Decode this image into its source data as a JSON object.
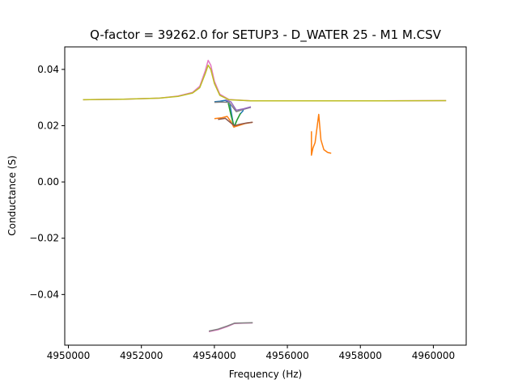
{
  "chart_data": {
    "type": "line",
    "title": "Q-factor = 39262.0 for SETUP3 - D_WATER 25 - M1 M.CSV",
    "xlabel": "Frequency (Hz)",
    "ylabel": "Conductance (S)",
    "xlim": [
      4949900,
      4960900
    ],
    "ylim": [
      -0.058,
      0.048
    ],
    "xticks": [
      4950000,
      4952000,
      4954000,
      4956000,
      4958000,
      4960000
    ],
    "xtick_labels": [
      "4950000",
      "4952000",
      "4954000",
      "4956000",
      "4958000",
      "4960000"
    ],
    "yticks": [
      -0.04,
      -0.02,
      0.0,
      0.02,
      0.04
    ],
    "ytick_labels": [
      "−0.04",
      "−0.02",
      "0.00",
      "0.02",
      "0.04"
    ],
    "grid": false,
    "legend": false,
    "series": [
      {
        "color": "#e377c2",
        "x": [
          4950400,
          4951500,
          4952500,
          4953000,
          4953400,
          4953600,
          4953750,
          4953830,
          4953900,
          4954000,
          4954150,
          4954400,
          4955000,
          4956500,
          4958500,
          4960350
        ],
        "y": [
          0.0292,
          0.0294,
          0.0298,
          0.0305,
          0.0318,
          0.034,
          0.0395,
          0.0432,
          0.0415,
          0.0358,
          0.0312,
          0.0293,
          0.0288,
          0.0288,
          0.0288,
          0.0289
        ]
      },
      {
        "color": "#bcbd22",
        "x": [
          4950400,
          4951500,
          4952500,
          4953000,
          4953400,
          4953600,
          4953750,
          4953830,
          4953900,
          4954000,
          4954150,
          4954400,
          4955000,
          4956500,
          4958500,
          4960350
        ],
        "y": [
          0.0292,
          0.0294,
          0.0298,
          0.0304,
          0.0316,
          0.0335,
          0.0385,
          0.0415,
          0.04,
          0.035,
          0.0308,
          0.0292,
          0.0288,
          0.0288,
          0.0288,
          0.0289
        ]
      },
      {
        "color": "#1f77b4",
        "x": [
          4954000,
          4954150,
          4954300,
          4954420,
          4954500,
          4954540,
          4954600,
          4954700,
          4954800
        ],
        "y": [
          0.0285,
          0.0287,
          0.029,
          0.028,
          0.022,
          0.0195,
          0.0215,
          0.024,
          0.0255
        ]
      },
      {
        "color": "#2ca02c",
        "x": [
          4954380,
          4954460,
          4954520,
          4954560,
          4954620,
          4954720
        ],
        "y": [
          0.028,
          0.0235,
          0.0205,
          0.02,
          0.022,
          0.0245
        ]
      },
      {
        "color": "#7f7f7f",
        "x": [
          4954000,
          4954200,
          4954400,
          4954600,
          4954800,
          4955000
        ],
        "y": [
          0.0283,
          0.0284,
          0.0283,
          0.025,
          0.0258,
          0.0265
        ]
      },
      {
        "color": "#9467bd",
        "x": [
          4954300,
          4954450,
          4954600,
          4954800,
          4955000
        ],
        "y": [
          0.0292,
          0.0285,
          0.0255,
          0.026,
          0.0267
        ]
      },
      {
        "color": "#ff7f0e",
        "x": [
          4954000,
          4954200,
          4954350,
          4954450,
          4954530,
          4954650,
          4954850,
          4955050
        ],
        "y": [
          0.0225,
          0.0228,
          0.0233,
          0.0215,
          0.0195,
          0.02,
          0.0208,
          0.0212
        ]
      },
      {
        "color": "#8c564b",
        "x": [
          4954100,
          4954300,
          4954450,
          4954550,
          4954700,
          4954900,
          4955050
        ],
        "y": [
          0.0222,
          0.0226,
          0.021,
          0.02,
          0.0205,
          0.021,
          0.0212
        ]
      },
      {
        "color": "#ff7f0e",
        "x": [
          4956660,
          4956660,
          4956700,
          4956760,
          4956820,
          4956860,
          4956920,
          4957000,
          4957100,
          4957200
        ],
        "y": [
          0.018,
          0.0095,
          0.012,
          0.014,
          0.02,
          0.024,
          0.015,
          0.0115,
          0.0105,
          0.0102
        ]
      },
      {
        "color": "#e377c2",
        "x": [
          4953850,
          4954100,
          4954350,
          4954550,
          4954800,
          4955050
        ],
        "y": [
          -0.0532,
          -0.0525,
          -0.0514,
          -0.0503,
          -0.0502,
          -0.0501
        ]
      },
      {
        "color": "#7f7f7f",
        "x": [
          4953850,
          4954100,
          4954350,
          4954550,
          4954800,
          4955050
        ],
        "y": [
          -0.053,
          -0.0523,
          -0.0512,
          -0.0502,
          -0.0501,
          -0.05
        ]
      }
    ]
  }
}
